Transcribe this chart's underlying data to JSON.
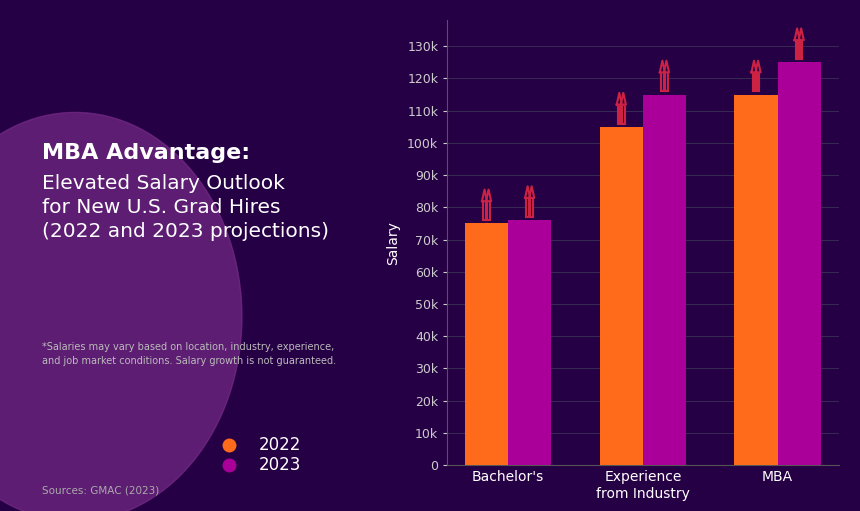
{
  "categories": [
    "Bachelor's",
    "Experience\nfrom Industry",
    "MBA"
  ],
  "values_2022": [
    75000,
    105000,
    115000
  ],
  "values_2023": [
    76000,
    115000,
    125000
  ],
  "color_2022": "#FF6B1A",
  "color_2023": "#AA0099",
  "arrow_stroke": "#CC2244",
  "arrow_fill": "#3D0060",
  "bg_left": "#3A0058",
  "bg_right": "#260045",
  "circle_color": "#7B2D8B",
  "title_bold": "MBA Advantage:",
  "title_rest": "Elevated Salary Outlook\nfor New U.S. Grad Hires\n(2022 and 2023 projections)",
  "footnote": "*Salaries may vary based on location, industry, experience,\nand job market conditions. Salary growth is not guaranteed.",
  "source": "Sources: GMAC (2023)",
  "ylabel": "Salary",
  "yticks": [
    0,
    10000,
    20000,
    30000,
    40000,
    50000,
    60000,
    70000,
    80000,
    90000,
    100000,
    110000,
    120000,
    130000
  ],
  "ylim": [
    0,
    138000
  ],
  "legend_2022": "2022",
  "legend_2023": "2023",
  "tick_color": "#CCCCCC",
  "axis_text_color": "#FFFFFF",
  "bar_width": 0.32
}
